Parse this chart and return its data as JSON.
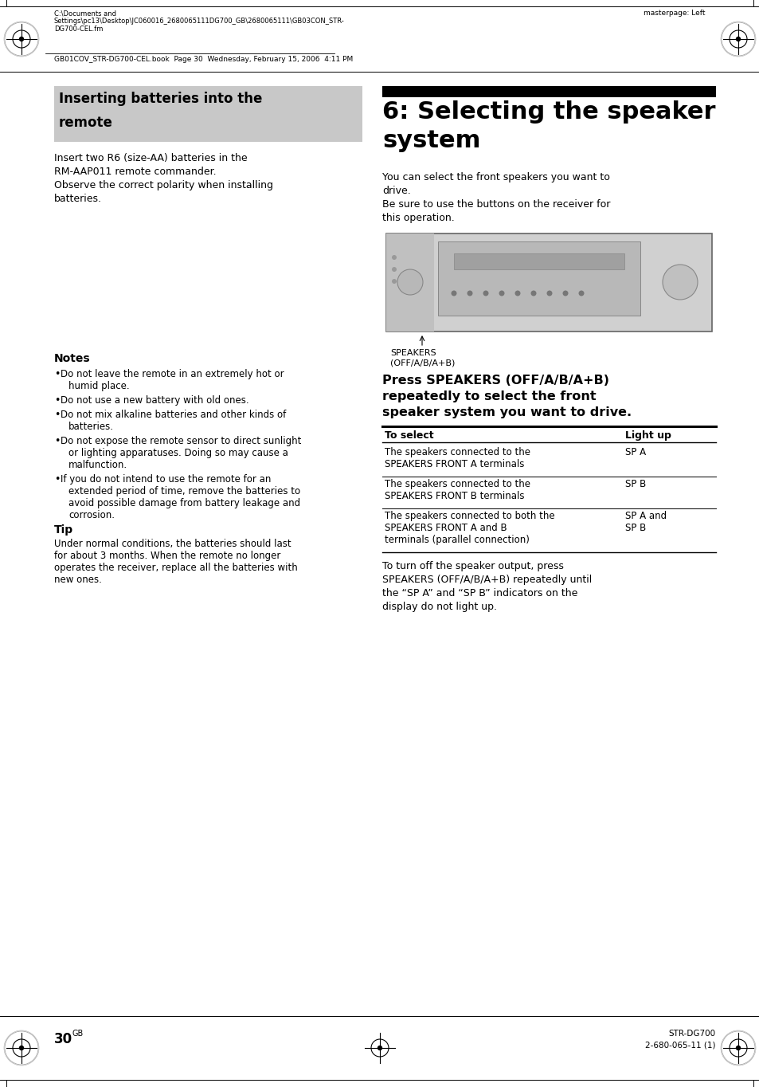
{
  "page_bg": "#ffffff",
  "header_file_path_line1": "C:\\Documents and",
  "header_file_path_line2": "Settings\\pc13\\Desktop\\JC060016_2680065111DG700_GB\\2680065111\\GB03CON_STR-",
  "header_file_path_line3": "DG700-CEL.fm",
  "header_masterpage": "masterpage: Left",
  "header_book": "GB01COV_STR-DG700-CEL.book  Page 30  Wednesday, February 15, 2006  4:11 PM",
  "left_section_title_line1": "Inserting batteries into the",
  "left_section_title_line2": "remote",
  "left_section_title_bg": "#c8c8c8",
  "left_body1_lines": [
    "Insert two R6 (size-AA) batteries in the",
    "RM-AAP011 remote commander.",
    "Observe the correct polarity when installing",
    "batteries."
  ],
  "notes_title": "Notes",
  "notes": [
    [
      "Do not leave the remote in an extremely hot or",
      "humid place."
    ],
    [
      "Do not use a new battery with old ones."
    ],
    [
      "Do not mix alkaline batteries and other kinds of",
      "batteries."
    ],
    [
      "Do not expose the remote sensor to direct sunlight",
      "or lighting apparatuses. Doing so may cause a",
      "malfunction."
    ],
    [
      "If you do not intend to use the remote for an",
      "extended period of time, remove the batteries to",
      "avoid possible damage from battery leakage and",
      "corrosion."
    ]
  ],
  "tip_title": "Tip",
  "tip_body_lines": [
    "Under normal conditions, the batteries should last",
    "for about 3 months. When the remote no longer",
    "operates the receiver, replace all the batteries with",
    "new ones."
  ],
  "right_section_bar_color": "#000000",
  "right_title_line1": "6: Selecting the speaker",
  "right_title_line2": "system",
  "right_body1_lines": [
    "You can select the front speakers you want to",
    "drive.",
    "Be sure to use the buttons on the receiver for",
    "this operation."
  ],
  "speakers_label_line1": "SPEAKERS",
  "speakers_label_line2": "(OFF/A/B/A+B)",
  "press_title_lines": [
    "Press SPEAKERS (OFF/A/B/A+B)",
    "repeatedly to select the front",
    "speaker system you want to drive."
  ],
  "table_col1_header": "To select",
  "table_col2_header": "Light up",
  "table_rows": [
    [
      [
        "The speakers connected to the",
        "SPEAKERS FRONT A terminals"
      ],
      [
        "SP A"
      ]
    ],
    [
      [
        "The speakers connected to the",
        "SPEAKERS FRONT B terminals"
      ],
      [
        "SP B"
      ]
    ],
    [
      [
        "The speakers connected to both the",
        "SPEAKERS FRONT A and B",
        "terminals (parallel connection)"
      ],
      [
        "SP A and",
        "SP B"
      ]
    ]
  ],
  "turn_off_lines": [
    "To turn off the speaker output, press",
    "SPEAKERS (OFF/A/B/A+B) repeatedly until",
    "the “SP A” and “SP B” indicators on the",
    "display do not light up."
  ],
  "page_number": "30",
  "page_number_sup": "GB",
  "footer_model_line1": "STR-DG700",
  "footer_model_line2": "2-680-065-11 (1)",
  "light_gray": "#c8c8c8"
}
